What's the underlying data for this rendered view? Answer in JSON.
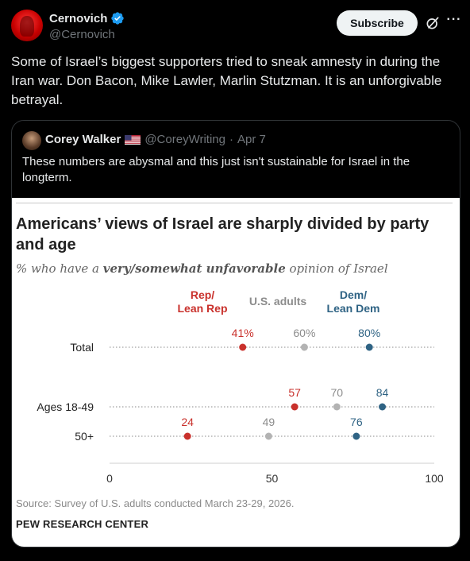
{
  "post": {
    "display_name": "Cernovich",
    "handle": "@Cernovich",
    "subscribe_label": "Subscribe",
    "text": "Some of Israel’s biggest supporters tried to sneak amnesty in during the Iran war. Don Bacon, Mike Lawler, Marlin Stutzman. It is an unforgivable betrayal."
  },
  "quote": {
    "display_name": "Corey Walker",
    "handle": "@CoreyWriting",
    "separator": "·",
    "date": "Apr 7",
    "text": "These numbers are abysmal and this just isn't sustainable for Israel in the longterm."
  },
  "chart_data": {
    "type": "scatter",
    "title": "Americans’ views of Israel are sharply divided by party and age",
    "subtitle_pre": "% who have a ",
    "subtitle_bold": "very/somewhat unfavorable",
    "subtitle_post": " opinion of Israel",
    "legend": [
      {
        "label_line1": "Rep/",
        "label_line2": "Lean Rep",
        "color": "#c9312c"
      },
      {
        "label_line1": "U.S. adults",
        "label_line2": "",
        "color": "#8c8c8c"
      },
      {
        "label_line1": "Dem/",
        "label_line2": "Lean Dem",
        "color": "#2f6384"
      }
    ],
    "categories": [
      "Total",
      "Ages 18-49",
      "50+"
    ],
    "series": [
      {
        "name": "Rep/Lean Rep",
        "values": [
          41,
          57,
          24
        ],
        "labels": [
          "41%",
          "57",
          "24"
        ],
        "color": "#c9312c"
      },
      {
        "name": "U.S. adults",
        "values": [
          60,
          70,
          49
        ],
        "labels": [
          "60%",
          "70",
          "49"
        ],
        "color": "#b3b3b3"
      },
      {
        "name": "Dem/Lean Dem",
        "values": [
          80,
          84,
          76
        ],
        "labels": [
          "80%",
          "84",
          "76"
        ],
        "color": "#2f6384"
      }
    ],
    "x_ticks": [
      "0",
      "50",
      "100"
    ],
    "xlim": [
      0,
      100
    ],
    "source": "Source: Survey of U.S. adults conducted March 23-29, 2026.",
    "org": "PEW RESEARCH CENTER"
  },
  "colors": {
    "background": "#000000",
    "text": "#e7e9ea",
    "muted": "#71767b",
    "verified": "#1d9bf0"
  }
}
